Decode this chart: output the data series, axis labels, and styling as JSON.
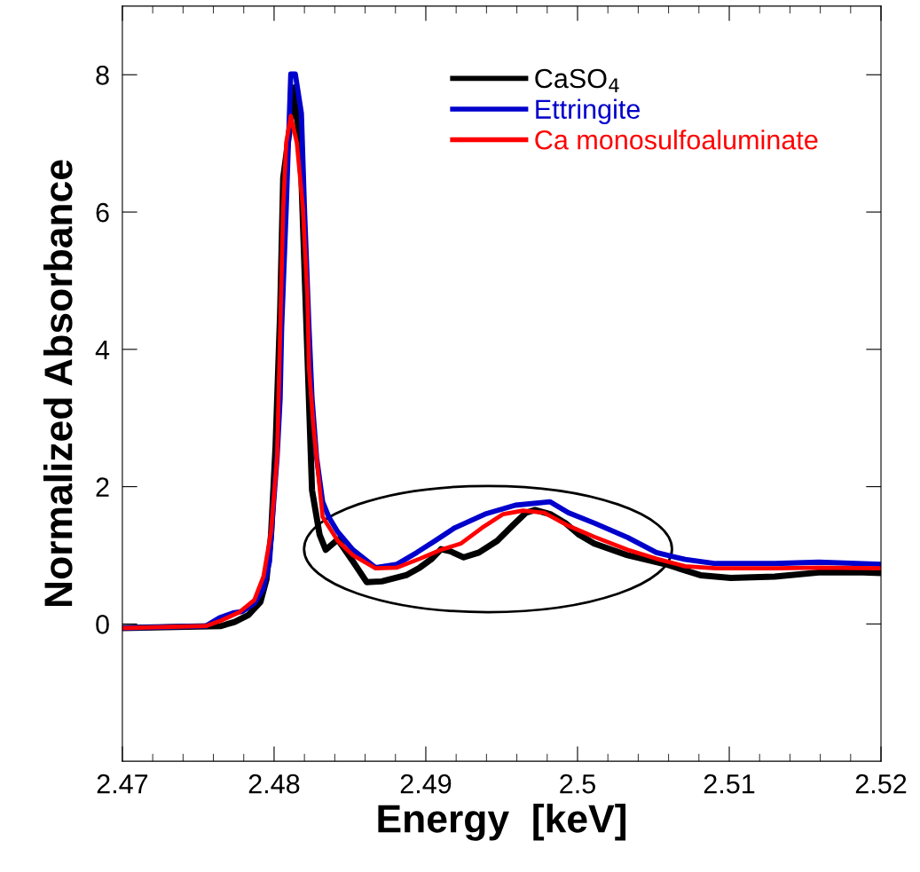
{
  "chart_data": {
    "type": "line",
    "xlabel": "Energy  [keV]",
    "ylabel": "Normalized Absorbance",
    "xlim": [
      2.47,
      2.52
    ],
    "ylim": [
      -2,
      9
    ],
    "xticks": [
      2.47,
      {
        "value": 2.472,
        "label": null
      },
      {
        "value": 2.474,
        "label": null
      },
      {
        "value": 2.476,
        "label": null
      },
      {
        "value": 2.478,
        "label": null
      },
      2.48,
      {
        "value": 2.482,
        "label": null
      },
      {
        "value": 2.484,
        "label": null
      },
      {
        "value": 2.486,
        "label": null
      },
      {
        "value": 2.488,
        "label": null
      },
      2.49,
      {
        "value": 2.492,
        "label": null
      },
      {
        "value": 2.494,
        "label": null
      },
      {
        "value": 2.496,
        "label": null
      },
      {
        "value": 2.498,
        "label": null
      },
      2.5,
      {
        "value": 2.502,
        "label": null
      },
      {
        "value": 2.504,
        "label": null
      },
      {
        "value": 2.506,
        "label": null
      },
      {
        "value": 2.508,
        "label": null
      },
      2.51,
      {
        "value": 2.512,
        "label": null
      },
      {
        "value": 2.514,
        "label": null
      },
      {
        "value": 2.516,
        "label": null
      },
      {
        "value": 2.518,
        "label": null
      },
      2.52
    ],
    "yticks": [
      0,
      2,
      4,
      6,
      8
    ],
    "grid": false,
    "legend": "top right",
    "marker": "none",
    "line_style": "solid",
    "series": [
      {
        "name": "CaSO$_{4}$",
        "color": "#000000",
        "x": [
          2.47,
          2.4765,
          2.4774,
          2.4783,
          2.4791,
          2.4795,
          2.4798,
          2.4801,
          2.4804,
          2.4806,
          2.4814,
          2.4818,
          2.4822,
          2.4825,
          2.483,
          2.4834,
          2.4842,
          2.4852,
          2.4861,
          2.4871,
          2.4887,
          2.4896,
          2.4904,
          2.491,
          2.4916,
          2.4925,
          2.4935,
          2.4947,
          2.4957,
          2.4966,
          2.4972,
          2.4982,
          2.4992,
          2.5001,
          2.5011,
          2.5033,
          2.5058,
          2.5081,
          2.5101,
          2.513,
          2.5159,
          2.5188,
          2.52
        ],
        "values": [
          -0.06,
          -0.03,
          0.03,
          0.13,
          0.32,
          0.65,
          1.3,
          2.6,
          4.55,
          6.5,
          7.82,
          6.5,
          3.9,
          1.95,
          1.3,
          1.08,
          1.23,
          0.91,
          0.61,
          0.62,
          0.71,
          0.82,
          0.95,
          1.09,
          1.06,
          0.97,
          1.04,
          1.21,
          1.43,
          1.62,
          1.66,
          1.6,
          1.47,
          1.3,
          1.17,
          1.0,
          0.87,
          0.71,
          0.67,
          0.69,
          0.75,
          0.75,
          0.74
        ]
      },
      {
        "name": "Ettringite",
        "color": "#0000cc",
        "x": [
          2.47,
          2.4755,
          2.4764,
          2.4773,
          2.4779,
          2.4787,
          2.4793,
          2.4797,
          2.4799,
          2.4802,
          2.4804,
          2.4805,
          2.4808,
          2.4811,
          2.4814,
          2.4818,
          2.482,
          2.4823,
          2.4825,
          2.4828,
          2.4832,
          2.4836,
          2.4842,
          2.4852,
          2.4867,
          2.4881,
          2.4894,
          2.4906,
          2.4919,
          2.4939,
          2.4959,
          2.4982,
          2.4994,
          2.5011,
          2.5033,
          2.5052,
          2.5071,
          2.5091,
          2.513,
          2.5159,
          2.52
        ],
        "values": [
          -0.06,
          -0.03,
          0.09,
          0.16,
          0.18,
          0.3,
          0.52,
          0.91,
          1.56,
          2.43,
          3.29,
          4.32,
          6.06,
          8.01,
          8.01,
          7.44,
          6.06,
          4.32,
          3.29,
          2.43,
          1.78,
          1.56,
          1.34,
          1.08,
          0.82,
          0.87,
          1.04,
          1.21,
          1.4,
          1.6,
          1.73,
          1.78,
          1.62,
          1.47,
          1.26,
          1.04,
          0.94,
          0.88,
          0.88,
          0.9,
          0.87
        ]
      },
      {
        "name": "Ca monosulfoaluminate",
        "color": "#ff0000",
        "x": [
          2.47,
          2.4755,
          2.4764,
          2.4777,
          2.4787,
          2.4793,
          2.4798,
          2.4802,
          2.4806,
          2.4808,
          2.4811,
          2.4815,
          2.4819,
          2.4822,
          2.4823,
          2.4826,
          2.483,
          2.4832,
          2.4842,
          2.4852,
          2.4867,
          2.4881,
          2.4896,
          2.491,
          2.4923,
          2.4937,
          2.4951,
          2.4964,
          2.4978,
          2.4994,
          2.5011,
          2.5033,
          2.5052,
          2.5071,
          2.5091,
          2.513,
          2.5159,
          2.52
        ],
        "values": [
          -0.06,
          -0.03,
          0.04,
          0.17,
          0.35,
          0.69,
          1.34,
          2.43,
          6.06,
          7.01,
          7.4,
          7.01,
          6.06,
          4.77,
          3.73,
          2.86,
          1.99,
          1.56,
          1.21,
          1.0,
          0.81,
          0.82,
          0.95,
          1.08,
          1.17,
          1.4,
          1.6,
          1.65,
          1.62,
          1.43,
          1.27,
          1.08,
          0.95,
          0.84,
          0.81,
          0.81,
          0.82,
          0.81
        ]
      }
    ]
  }
}
